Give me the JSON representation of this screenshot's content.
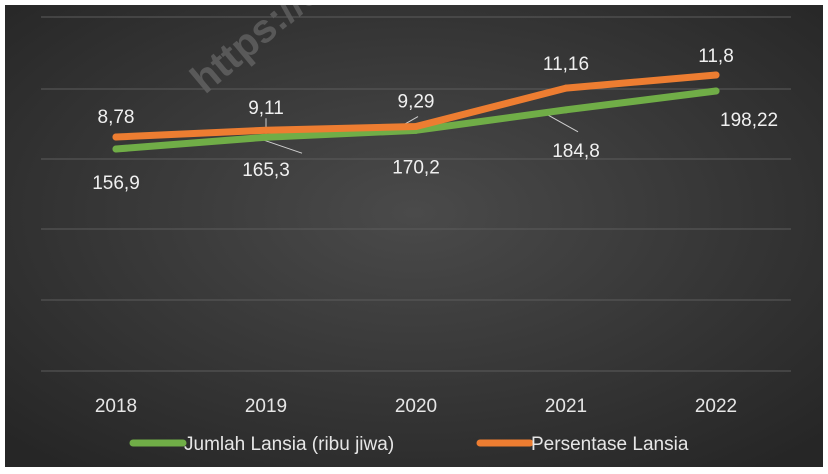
{
  "chart_data": {
    "type": "line",
    "title": "",
    "xlabel": "",
    "ylabel": "",
    "categories": [
      "2018",
      "2019",
      "2020",
      "2021",
      "2022"
    ],
    "series": [
      {
        "name": "Jumlah Lansia (ribu jiwa)",
        "values": [
          156.9,
          165.3,
          170.2,
          184.8,
          198.22
        ],
        "labels": [
          "156,9",
          "165,3",
          "170,2",
          "184,8",
          "198,22"
        ],
        "color": "#70AD47"
      },
      {
        "name": "Persentase Lansia",
        "values": [
          8.78,
          9.11,
          9.29,
          11.16,
          11.8
        ],
        "labels": [
          "8,78",
          "9,11",
          "9,29",
          "11,16",
          "11,8"
        ],
        "color": "#ED7D31"
      }
    ],
    "legend_position": "bottom",
    "grid": true,
    "y_axis_labels_visible": false,
    "background": "#3a3a3a"
  },
  "watermark": "https://s"
}
